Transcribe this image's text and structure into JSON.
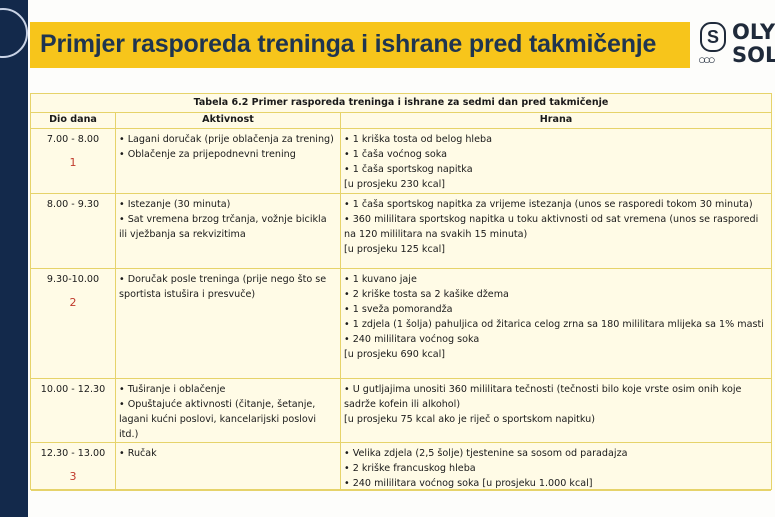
{
  "header": {
    "title": "Primjer rasporeda treninga i ishrane pred takmičenje",
    "logo_text": [
      "OLYM",
      "SOLI"
    ]
  },
  "table": {
    "caption": "Tabela 6.2    Primer rasporeda treninga i ishrane za sedmi dan pred takmičenje",
    "columns": [
      "Dio dana",
      "Aktivnost",
      "Hrana"
    ],
    "rows": [
      {
        "time": "7.00 - 8.00",
        "num": "1",
        "activity": [
          "• Lagani doručak (prije oblačenja za trening)",
          "• Oblačenje za prijepodnevni trening"
        ],
        "food": [
          "• 1 kriška tosta od belog hleba",
          "• 1 čaša voćnog soka",
          "• 1 čaša sportskog napitka",
          "[u prosjeku 230 kcal]"
        ]
      },
      {
        "time": "8.00 - 9.30",
        "num": "",
        "activity": [
          "• Istezanje (30 minuta)",
          "• Sat vremena brzog trčanja, vožnje bicikla ili vježbanja sa rekvizitima"
        ],
        "food": [
          "• 1 čaša sportskog napitka za vrijeme istezanja (unos se rasporedi tokom 30 minuta)",
          "• 360 mililitara sportskog napitka u toku aktivnosti od sat vremena (unos se rasporedi na 120 mililitara na svakih 15 minuta)",
          "[u prosjeku 125 kcal]"
        ]
      },
      {
        "time": "9.30-10.00",
        "num": "2",
        "activity": [
          "• Doručak posle treninga (prije nego što se sportista istušira i presvuče)"
        ],
        "food": [
          "• 1 kuvano jaje",
          "• 2 kriške tosta sa 2 kašike džema",
          "• 1 sveža pomorandža",
          "• 1 zdjela (1 šolja) pahuljica od žitarica celog zrna sa 180 mililitara mlijeka sa 1% masti",
          "• 240 mililitara voćnog soka",
          "[u prosjeku 690 kcal]"
        ]
      },
      {
        "time": "10.00 - 12.30",
        "num": "",
        "activity": [
          "• Tuširanje i oblačenje",
          "• Opuštajuće aktivnosti (čitanje, šetanje, lagani kućni poslovi, kancelarijski poslovi itd.)"
        ],
        "food": [
          "• U gutljajima unositi 360 mililitara tečnosti (tečnosti bilo koje vrste osim onih koje sadrže kofein ili alkohol)",
          "[u prosjeku 75 kcal ako je riječ o sportskom napitku)"
        ]
      },
      {
        "time": "12.30 - 13.00",
        "num": "3",
        "activity": [
          "• Ručak"
        ],
        "food": [
          "• Velika zdjela (2,5 šolje) tjestenine sa sosom od paradajza",
          "• 2 kriške francuskog hleba",
          "• 240 mililitara voćnog soka [u prosjeku 1.000 kcal]"
        ]
      }
    ]
  },
  "colors": {
    "banner": "#f7c51b",
    "strip": "#13294b",
    "table_bg": "#fffbe6",
    "number": "#c0392b"
  }
}
